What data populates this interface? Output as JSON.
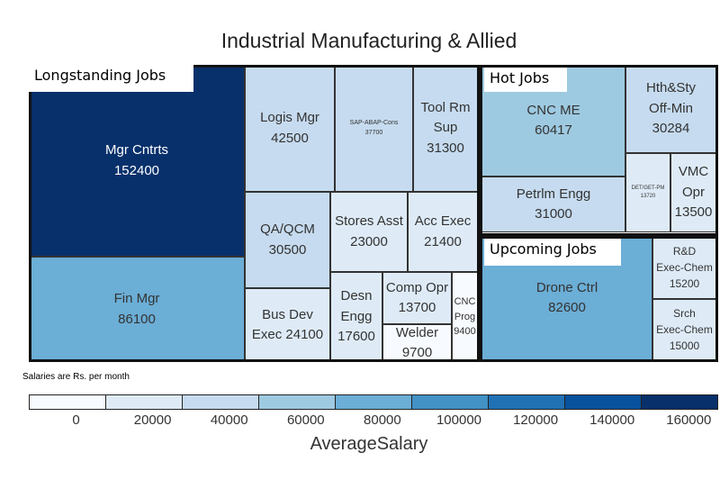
{
  "chart_data": {
    "type": "treemap",
    "title": "Industrial Manufacturing & Allied",
    "color_variable": "AverageSalary",
    "note": "Salaries are Rs. per month",
    "groups": [
      {
        "name": "Longstanding Jobs",
        "items": [
          {
            "label": "Mgr Cntrts",
            "value": 152400
          },
          {
            "label": "Fin Mgr",
            "value": 86100
          },
          {
            "label": "Logis Mgr",
            "value": 42500
          },
          {
            "label": "SAP-ABAP-Cons",
            "value": 37700
          },
          {
            "label": "Tool Rm Sup",
            "value": 31300
          },
          {
            "label": "QA/QCM",
            "value": 30500
          },
          {
            "label": "Stores Asst",
            "value": 23000
          },
          {
            "label": "Acc Exec",
            "value": 21400
          },
          {
            "label": "Bus Dev Exec",
            "value": 24100
          },
          {
            "label": "Desn Engg",
            "value": 17600
          },
          {
            "label": "Comp Opr",
            "value": 13700
          },
          {
            "label": "Welder",
            "value": 9700
          },
          {
            "label": "CNC Prog",
            "value": 9400
          }
        ]
      },
      {
        "name": "Hot Jobs",
        "items": [
          {
            "label": "CNC ME",
            "value": 60417
          },
          {
            "label": "Petrlm Engg",
            "value": 31000
          },
          {
            "label": "Hth&Sty Off-Min",
            "value": 30284
          },
          {
            "label": "DET/GET-PM",
            "value": 13720
          },
          {
            "label": "VMC Opr",
            "value": 13500
          }
        ]
      },
      {
        "name": "Upcoming Jobs",
        "items": [
          {
            "label": "Drone Ctrl",
            "value": 82600
          },
          {
            "label": "R&D Exec-Chem",
            "value": 15200
          },
          {
            "label": "Srch Exec-Chem",
            "value": 15000
          }
        ]
      }
    ],
    "legend": {
      "title": "AverageSalary",
      "ticks": [
        "0",
        "20000",
        "40000",
        "60000",
        "80000",
        "100000",
        "120000",
        "140000",
        "160000"
      ],
      "colors": [
        "#f7fbff",
        "#deebf7",
        "#c6dbef",
        "#9ecae1",
        "#6baed6",
        "#4292c6",
        "#2171b5",
        "#08519c",
        "#08306b"
      ]
    }
  }
}
